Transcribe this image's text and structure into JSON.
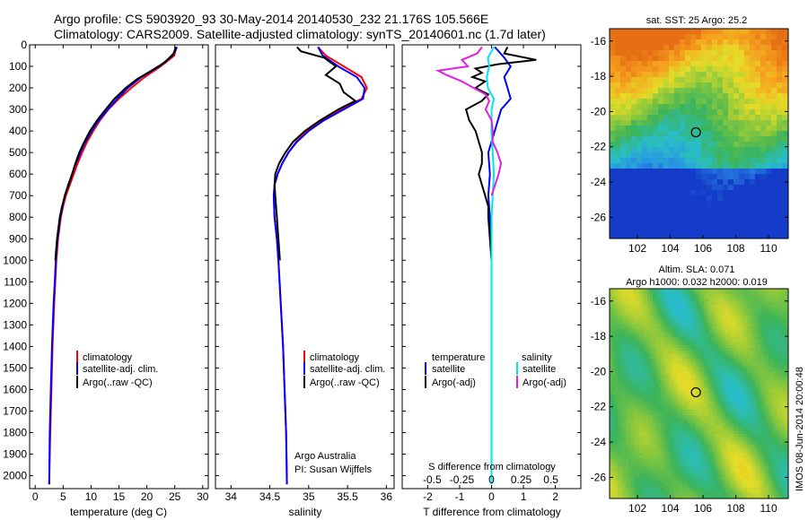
{
  "title": {
    "line1": "Argo profile: CS 5903920_93 30-May-2014 20140530_232 21.176S 105.566E",
    "line2": "Climatology: CARS2009. Satellite-adjusted climatology: synTS_20140601.nc (1.7d later)"
  },
  "colors": {
    "climatology": "#ff0000",
    "satellite": "#0000ff",
    "argo": "#000000",
    "sat_salinity": "#00e5ee",
    "argo_salinity": "#e020e0"
  },
  "depth_axis": {
    "ylim": [
      2060,
      0
    ],
    "ticks": [
      "0",
      "100",
      "200",
      "300",
      "400",
      "500",
      "600",
      "700",
      "800",
      "900",
      "1000",
      "1100",
      "1200",
      "1300",
      "1400",
      "1500",
      "1600",
      "1700",
      "1800",
      "1900",
      "2000"
    ]
  },
  "chart_data": [
    {
      "id": "temperature",
      "type": "line",
      "xlabel": "temperature (deg C)",
      "xlim": [
        -1,
        31
      ],
      "xticks": [
        "0",
        "5",
        "10",
        "15",
        "20",
        "25",
        "30"
      ],
      "legend": [
        "climatology",
        "satellite-adj. clim.",
        "Argo(..raw -QC)"
      ],
      "series": [
        {
          "name": "climatology",
          "depth": [
            10,
            50,
            100,
            150,
            200,
            250,
            300,
            350,
            400,
            450,
            500,
            550,
            600,
            650,
            700,
            750,
            800,
            900,
            1000,
            1100,
            1200,
            1400,
            1600,
            1800,
            2040
          ],
          "values": [
            25.3,
            24.9,
            22.5,
            19.6,
            17.2,
            15.0,
            13.1,
            11.6,
            10.4,
            9.3,
            8.4,
            7.6,
            6.9,
            6.2,
            5.5,
            5.0,
            4.6,
            4.1,
            3.8,
            3.6,
            3.4,
            3.1,
            2.9,
            2.7,
            2.5
          ]
        },
        {
          "name": "satellite-adj. clim.",
          "depth": [
            10,
            50,
            100,
            150,
            200,
            250,
            300,
            350,
            400,
            450,
            500,
            550,
            600,
            650,
            700,
            750,
            800,
            900,
            1000,
            1100,
            1200,
            1400,
            1600,
            1800,
            2040
          ],
          "values": [
            25.4,
            24.6,
            22.2,
            19.0,
            16.6,
            14.7,
            13.0,
            11.4,
            10.1,
            9.0,
            8.1,
            7.3,
            6.6,
            5.9,
            5.3,
            4.9,
            4.5,
            4.0,
            3.7,
            3.5,
            3.3,
            3.0,
            2.8,
            2.6,
            2.5
          ]
        },
        {
          "name": "Argo(..raw -QC)",
          "depth": [
            10,
            40,
            80,
            120,
            160,
            200,
            250,
            300,
            350,
            400,
            450,
            500,
            550,
            600,
            650,
            700,
            750,
            800,
            900,
            1000
          ],
          "values": [
            25.2,
            24.8,
            23.3,
            20.8,
            18.2,
            16.2,
            14.2,
            12.6,
            11.1,
            9.8,
            8.8,
            7.9,
            7.2,
            6.6,
            6.0,
            5.3,
            4.8,
            4.4,
            3.9,
            3.6
          ]
        }
      ]
    },
    {
      "id": "salinity",
      "type": "line",
      "xlabel": "salinity",
      "xlim": [
        33.8,
        36.1
      ],
      "xticks": [
        "34",
        "34.5",
        "35",
        "35.5",
        "36"
      ],
      "legend": [
        "climatology",
        "satellite-adj. clim.",
        "Argo(..raw -QC)"
      ],
      "annotation": [
        "Argo Australia",
        "PI: Susan Wijffels"
      ],
      "series": [
        {
          "name": "climatology",
          "depth": [
            10,
            50,
            100,
            150,
            200,
            250,
            300,
            350,
            400,
            450,
            500,
            550,
            600,
            650,
            700,
            800,
            900,
            1000,
            1200,
            1400,
            1600,
            1800,
            2040
          ],
          "values": [
            35.12,
            35.22,
            35.45,
            35.68,
            35.75,
            35.68,
            35.42,
            35.18,
            34.98,
            34.84,
            34.74,
            34.66,
            34.6,
            34.56,
            34.55,
            34.56,
            34.59,
            34.61,
            34.64,
            34.67,
            34.69,
            34.71,
            34.72
          ]
        },
        {
          "name": "satellite-adj. clim.",
          "depth": [
            10,
            50,
            100,
            150,
            200,
            250,
            300,
            350,
            400,
            450,
            500,
            550,
            600,
            650,
            700,
            800,
            900,
            1000,
            1200,
            1400,
            1600,
            1800,
            2040
          ],
          "values": [
            35.12,
            35.18,
            35.38,
            35.62,
            35.72,
            35.7,
            35.45,
            35.2,
            35.0,
            34.85,
            34.74,
            34.66,
            34.6,
            34.56,
            34.55,
            34.56,
            34.59,
            34.61,
            34.64,
            34.67,
            34.69,
            34.71,
            34.72
          ]
        },
        {
          "name": "Argo(..raw -QC)",
          "depth": [
            10,
            30,
            60,
            100,
            140,
            180,
            220,
            260,
            300,
            350,
            400,
            450,
            500,
            550,
            600,
            650,
            700,
            800,
            900,
            1000
          ],
          "values": [
            34.85,
            34.9,
            35.2,
            35.35,
            35.22,
            35.4,
            35.45,
            35.6,
            35.38,
            35.15,
            34.95,
            34.8,
            34.7,
            34.62,
            34.57,
            34.56,
            34.57,
            34.59,
            34.61,
            34.63
          ]
        }
      ]
    },
    {
      "id": "differences",
      "type": "line",
      "xlabel": "T difference from climatology",
      "xlim": [
        -2.8,
        2.8
      ],
      "xticks": [
        "-2",
        "-1",
        "0",
        "1",
        "2"
      ],
      "x2label": "S difference from climatology",
      "x2ticks": [
        "-0.5",
        "-0.25",
        "0",
        "0.25",
        "0.5"
      ],
      "legend": {
        "temperature": [
          "temperature",
          "satellite",
          "Argo(-adj)"
        ],
        "salinity": [
          "salinity",
          "satellite",
          "Argo(-adj)"
        ]
      },
      "series": [
        {
          "name": "satellite T",
          "depth": [
            10,
            60,
            100,
            150,
            200,
            250,
            300,
            400,
            500,
            600,
            700,
            800,
            1000,
            1200,
            1400,
            1600,
            1800,
            2040
          ],
          "values": [
            0.1,
            0.4,
            0.6,
            0.4,
            0.5,
            0.6,
            0.3,
            0.1,
            -0.1,
            -0.05,
            -0.1,
            -0.05,
            0.0,
            0.0,
            0.0,
            0.0,
            0.0,
            0.0
          ]
        },
        {
          "name": "Argo T",
          "depth": [
            10,
            40,
            70,
            90,
            110,
            130,
            150,
            170,
            200,
            230,
            260,
            300,
            350,
            400,
            450,
            500,
            550,
            600,
            650,
            700,
            750,
            800,
            900,
            1000
          ],
          "values": [
            0.5,
            0.4,
            1.4,
            0.2,
            -0.5,
            -0.3,
            -0.6,
            -0.2,
            -0.5,
            -0.1,
            -0.3,
            -0.8,
            -0.7,
            -0.5,
            -0.4,
            -0.3,
            -0.3,
            -0.4,
            -0.3,
            -0.2,
            -0.1,
            -0.1,
            -0.05,
            0.0
          ]
        },
        {
          "name": "satellite S",
          "depth": [
            10,
            60,
            100,
            150,
            200,
            250,
            300,
            400,
            500,
            600,
            700,
            800,
            900,
            1000,
            1200,
            1400,
            1600,
            1800,
            2040
          ],
          "values": [
            0.02,
            -0.03,
            -0.02,
            -0.04,
            -0.03,
            0.02,
            0.0,
            0.0,
            0.01,
            0.02,
            0.01,
            0.0,
            0.0,
            0.0,
            0.0,
            0.0,
            0.0,
            0.0,
            0.0
          ]
        },
        {
          "name": "Argo S",
          "depth": [
            10,
            40,
            70,
            100,
            120,
            140,
            170,
            200,
            230,
            260,
            300,
            350,
            400,
            450,
            500,
            550,
            600,
            650,
            700
          ],
          "values": [
            -0.08,
            -0.12,
            -0.25,
            -0.2,
            -0.45,
            -0.38,
            -0.25,
            -0.15,
            -0.05,
            -0.02,
            -0.05,
            0.0,
            0.01,
            0.01,
            0.05,
            0.08,
            0.06,
            0.03,
            0.0
          ]
        }
      ]
    },
    {
      "id": "sst_map",
      "type": "heatmap",
      "title": "sat. SST: 25  Argo: 25.2",
      "xticks": [
        "102",
        "104",
        "106",
        "108",
        "110"
      ],
      "yticks": [
        "-16",
        "-18",
        "-20",
        "-22",
        "-24",
        "-26"
      ],
      "xlim": [
        100.3,
        111.2
      ],
      "ylim": [
        -27.2,
        -15.3
      ],
      "marker": {
        "lon": 105.566,
        "lat": -21.176
      }
    },
    {
      "id": "sla_map",
      "type": "heatmap",
      "title1": "Altim. SLA: 0.071",
      "title2": "Argo h1000: 0.032  h2000: 0.019",
      "xticks": [
        "102",
        "104",
        "106",
        "108",
        "110"
      ],
      "yticks": [
        "-16",
        "-18",
        "-20",
        "-22",
        "-24",
        "-26"
      ],
      "xlim": [
        100.3,
        111.2
      ],
      "ylim": [
        -27.2,
        -15.3
      ],
      "marker": {
        "lon": 105.566,
        "lat": -21.176
      }
    }
  ],
  "watermark": "IMOS 08-Jun-2014 20:00:48"
}
